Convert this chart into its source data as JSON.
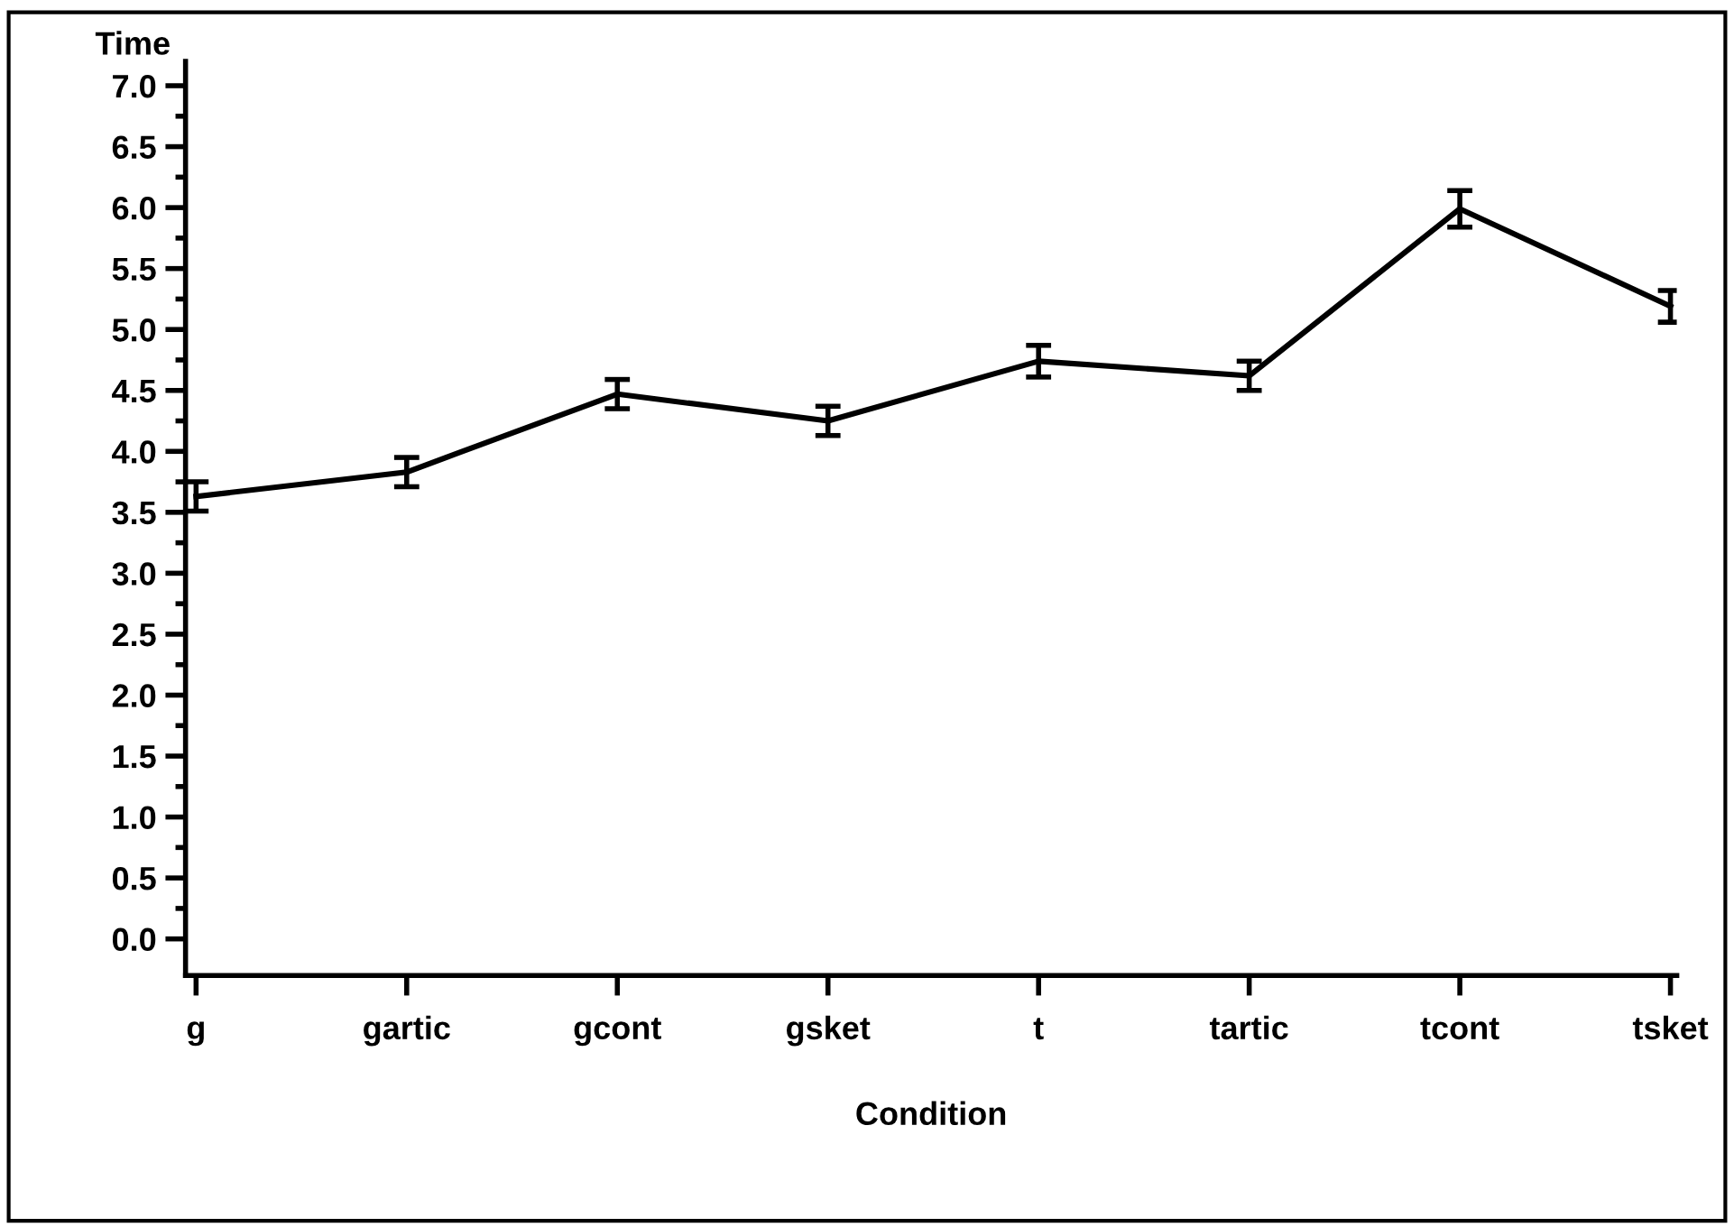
{
  "chart_data": {
    "type": "line",
    "xlabel": "Condition",
    "ylabel": "Time",
    "categories": [
      "g",
      "gartic",
      "gcont",
      "gsket",
      "t",
      "tartic",
      "tcont",
      "tsket"
    ],
    "series": [
      {
        "color": "#000000",
        "values": [
          3.63,
          3.83,
          4.47,
          4.25,
          4.74,
          4.62,
          5.99,
          5.19
        ],
        "errors": [
          0.12,
          0.12,
          0.12,
          0.12,
          0.13,
          0.12,
          0.15,
          0.13
        ]
      }
    ],
    "ylim": [
      -0.3,
      7.2
    ],
    "yticks": [
      {
        "value": 0,
        "label": "0.0"
      },
      0.5,
      {
        "value": 1,
        "label": "1.0"
      },
      1.5,
      {
        "value": 2,
        "label": "2.0"
      },
      2.5,
      {
        "value": 3,
        "label": "3.0"
      },
      3.5,
      {
        "value": 4,
        "label": "4.0"
      },
      4.5,
      {
        "value": 5,
        "label": "5.0"
      },
      5.5,
      {
        "value": 6,
        "label": "6.0"
      },
      6.5,
      {
        "value": 7,
        "label": "7.0"
      }
    ],
    "grid": false,
    "legend": false,
    "marker": "none",
    "line_style": "solid"
  }
}
